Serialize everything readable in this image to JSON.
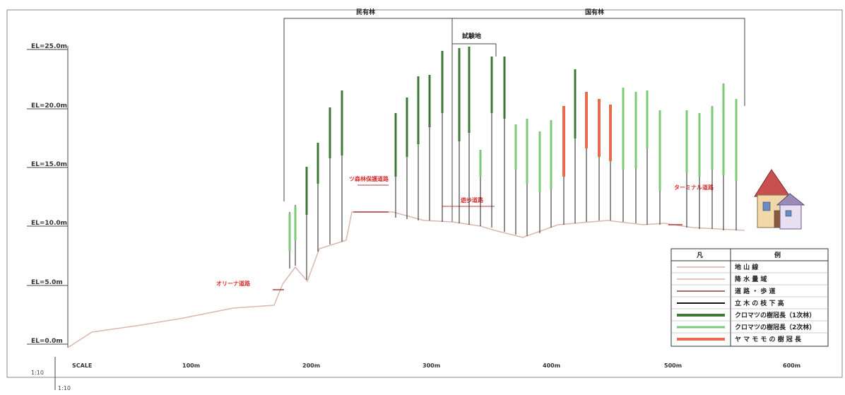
{
  "ownership": {
    "private": "民有林",
    "national": "国有林",
    "test": "試験地"
  },
  "elevations": [
    "EL=25.0m",
    "EL=20.0m",
    "EL=15.0m",
    "EL=10.0m",
    "EL=5.0m",
    "EL=0.0m"
  ],
  "distance_ticks": [
    "SCALE",
    "100m",
    "200m",
    "300m",
    "400m",
    "500m",
    "600m"
  ],
  "scale": [
    "1:10",
    "1:10"
  ],
  "roads": [
    {
      "label": "オリーナ道路"
    },
    {
      "label": "ツ森林保護道路"
    },
    {
      "label": "遊歩道路"
    },
    {
      "label": "ターミナル道路"
    }
  ],
  "legend": {
    "title_left": "凡",
    "title_right": "例",
    "items": [
      {
        "label": "地 山 線",
        "color": "#c98b7a",
        "weight": 1
      },
      {
        "label": "降 水 量 域",
        "color": "#c98b7a",
        "weight": 1
      },
      {
        "label": "道 路 ・ 歩 道",
        "color": "#8e3b3b",
        "weight": 1.5
      },
      {
        "label": "立 木 の 枝 下 高",
        "color": "#111111",
        "weight": 2
      },
      {
        "label": "クロマツの樹冠長（1次林）",
        "color": "#3f7a3a",
        "weight": 4
      },
      {
        "label": "クロマツの樹冠長（2次林）",
        "color": "#7ec87a",
        "weight": 3
      },
      {
        "label": "ヤ マ モ モ の 樹 冠 長",
        "color": "#e86a50",
        "weight": 4
      }
    ]
  },
  "colors": {
    "ground": "#d9b8b0",
    "road": "#b04040",
    "trunk": "#222222",
    "crown_dark": "#3f7a3a",
    "crown_light": "#7ec87a",
    "crown_red": "#e86a50"
  },
  "icons": [
    "house-icon"
  ]
}
